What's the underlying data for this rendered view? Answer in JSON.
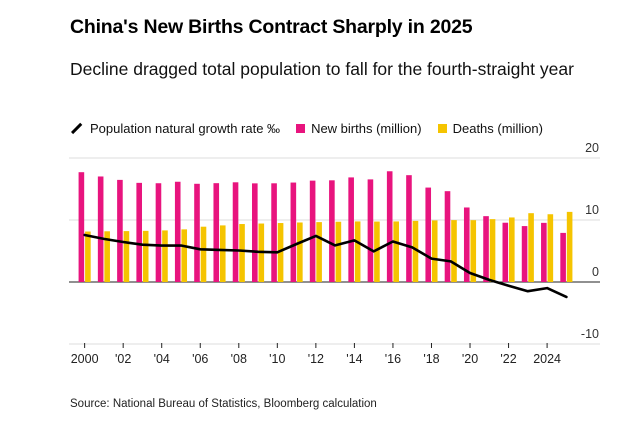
{
  "title": "China's New Births Contract Sharply in 2025",
  "subtitle": "Decline dragged total population to fall for the fourth-straight year",
  "legend": {
    "growth_label": "Population natural growth rate ‰",
    "births_label": "New births (million)",
    "deaths_label": "Deaths (million)"
  },
  "source": "Source: National Bureau of Statistics, Bloomberg calculation",
  "chart_data": {
    "type": "bar",
    "title": "China's New Births Contract Sharply in 2025",
    "subtitle": "Decline dragged total population to fall for the fourth-straight year",
    "x": [
      2000,
      2001,
      2002,
      2003,
      2004,
      2005,
      2006,
      2007,
      2008,
      2009,
      2010,
      2011,
      2012,
      2013,
      2014,
      2015,
      2016,
      2017,
      2018,
      2019,
      2020,
      2021,
      2022,
      2023,
      2024,
      2025
    ],
    "x_tick_labels": [
      "2000",
      "'02",
      "'04",
      "'06",
      "'08",
      "'10",
      "'12",
      "'14",
      "'16",
      "'18",
      "'20",
      "'22",
      "2024"
    ],
    "x_tick_years": [
      2000,
      2002,
      2004,
      2006,
      2008,
      2010,
      2012,
      2014,
      2016,
      2018,
      2020,
      2022,
      2024
    ],
    "series": [
      {
        "name": "New births (million)",
        "kind": "bar",
        "color": "#e8147e",
        "values": [
          17.71,
          17.02,
          16.47,
          15.99,
          15.93,
          16.17,
          15.84,
          15.94,
          16.08,
          15.91,
          15.92,
          16.04,
          16.35,
          16.4,
          16.87,
          16.55,
          17.86,
          17.23,
          15.23,
          14.65,
          12.02,
          10.62,
          9.56,
          9.02,
          9.54,
          7.92
        ]
      },
      {
        "name": "Deaths (million)",
        "kind": "bar",
        "color": "#f5c400",
        "values": [
          8.14,
          8.18,
          8.21,
          8.25,
          8.32,
          8.49,
          8.92,
          9.13,
          9.35,
          9.43,
          9.51,
          9.6,
          9.66,
          9.72,
          9.77,
          9.75,
          9.77,
          9.86,
          9.93,
          9.98,
          9.97,
          10.14,
          10.41,
          11.1,
          10.93,
          11.31
        ]
      },
      {
        "name": "Population natural growth rate ‰",
        "kind": "line",
        "color": "#000000",
        "values": [
          7.58,
          6.95,
          6.45,
          6.01,
          5.87,
          5.89,
          5.28,
          5.17,
          5.08,
          4.87,
          4.79,
          6.13,
          7.43,
          5.9,
          6.71,
          4.93,
          6.53,
          5.58,
          3.78,
          3.32,
          1.45,
          0.34,
          -0.6,
          -1.48,
          -0.99,
          -2.4
        ]
      }
    ],
    "y_axis": {
      "side": "right",
      "ticks": [
        20,
        10,
        0,
        -10
      ],
      "tick_labels": [
        "20",
        "10",
        "0",
        "-10"
      ],
      "range": [
        -10,
        20
      ]
    },
    "grid": "horizontal",
    "legend_position": "top-left",
    "source": "Source: National Bureau of Statistics, Bloomberg calculation"
  }
}
